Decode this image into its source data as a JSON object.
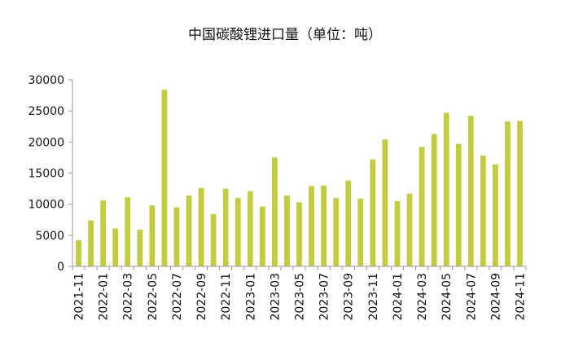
{
  "chart_data": {
    "type": "bar",
    "title": "中国碳酸锂进口量（单位：吨）",
    "xlabel": "",
    "ylabel": "",
    "ylim": [
      0,
      30000
    ],
    "yticks": [
      0,
      5000,
      10000,
      15000,
      20000,
      25000,
      30000
    ],
    "grid": false,
    "legend": "none",
    "bar_color": "#c3cc3c",
    "categories": [
      "2021-11",
      "2021-12",
      "2022-01",
      "2022-02",
      "2022-03",
      "2022-04",
      "2022-05",
      "2022-06",
      "2022-07",
      "2022-08",
      "2022-09",
      "2022-10",
      "2022-11",
      "2022-12",
      "2023-01",
      "2023-02",
      "2023-03",
      "2023-04",
      "2023-05",
      "2023-06",
      "2023-07",
      "2023-08",
      "2023-09",
      "2023-10",
      "2023-11",
      "2023-12",
      "2024-01",
      "2024-02",
      "2024-03",
      "2024-04",
      "2024-05",
      "2024-06",
      "2024-07",
      "2024-08",
      "2024-09",
      "2024-10",
      "2024-11"
    ],
    "xtick_labels": [
      "2021-11",
      "2022-01",
      "2022-03",
      "2022-05",
      "2022-07",
      "2022-09",
      "2022-11",
      "2023-01",
      "2023-03",
      "2023-05",
      "2023-07",
      "2023-09",
      "2023-11",
      "2024-01",
      "2024-03",
      "2024-05",
      "2024-07",
      "2024-09",
      "2024-11"
    ],
    "values": [
      4200,
      7400,
      10600,
      6100,
      11100,
      5900,
      9800,
      28400,
      9500,
      11400,
      12600,
      8400,
      12500,
      11000,
      12100,
      9600,
      17500,
      11400,
      10300,
      12900,
      13000,
      11000,
      13800,
      10900,
      17200,
      20400,
      10500,
      11700,
      19200,
      21300,
      24700,
      19700,
      24200,
      17800,
      16400,
      23300,
      23400
    ]
  }
}
